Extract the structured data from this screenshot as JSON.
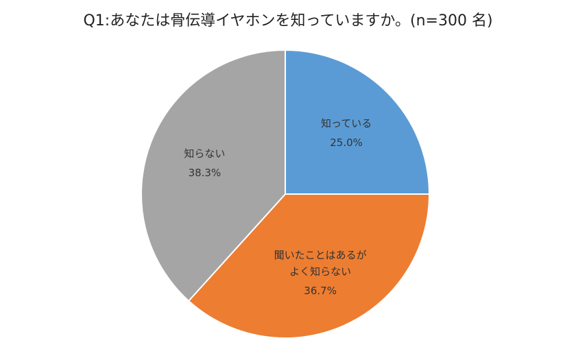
{
  "chart_data": {
    "type": "pie",
    "title": "Q1:あなたは骨伝導イヤホンを知っていますか。(n=300 名)",
    "categories": [
      "知っている",
      "聞いたことはあるが\nよく知らない",
      "知らない"
    ],
    "values": [
      25.0,
      36.7,
      38.3
    ],
    "value_labels": [
      "25.0%",
      "36.7%",
      "38.3%"
    ],
    "colors": [
      "#5b9bd5",
      "#ed7d31",
      "#a5a5a5"
    ]
  }
}
